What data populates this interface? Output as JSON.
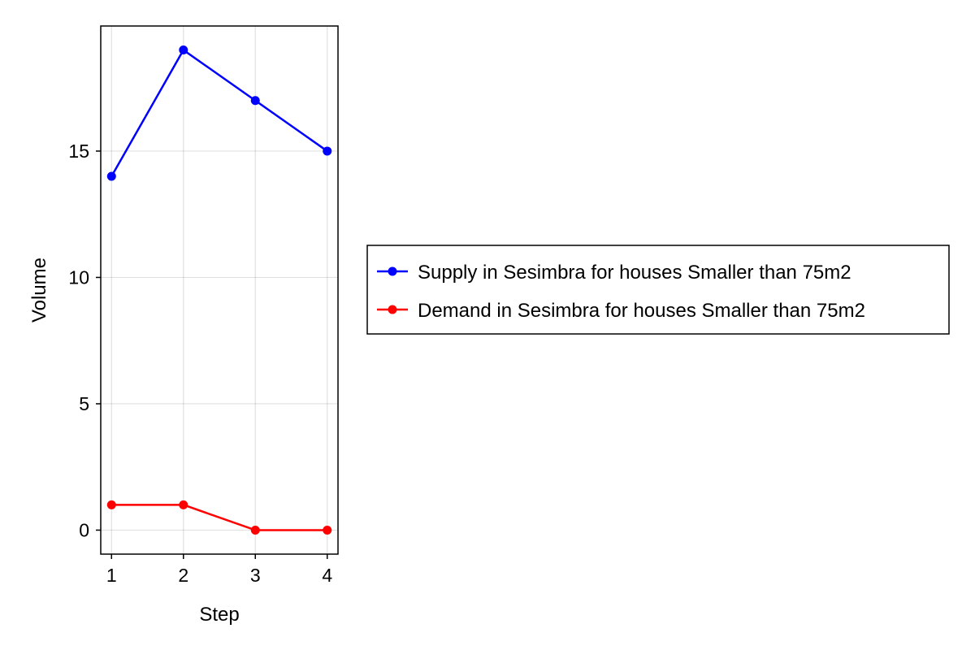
{
  "chart_data": {
    "type": "line",
    "title": "",
    "xlabel": "Step",
    "ylabel": "Volume",
    "x": [
      1,
      2,
      3,
      4
    ],
    "xlim": [
      0.85,
      4.15
    ],
    "ylim": [
      -0.95,
      19.95
    ],
    "xticks": [
      1,
      2,
      3,
      4
    ],
    "yticks": [
      0,
      5,
      10,
      15
    ],
    "grid": true,
    "legend_position": "right",
    "series": [
      {
        "name": "Supply in Sesimbra for houses Smaller than 75m2",
        "color": "#0000ff",
        "values": [
          14,
          19,
          17,
          15
        ]
      },
      {
        "name": "Demand in Sesimbra for houses Smaller than 75m2",
        "color": "#ff0000",
        "values": [
          1,
          1,
          0,
          0
        ]
      }
    ]
  }
}
